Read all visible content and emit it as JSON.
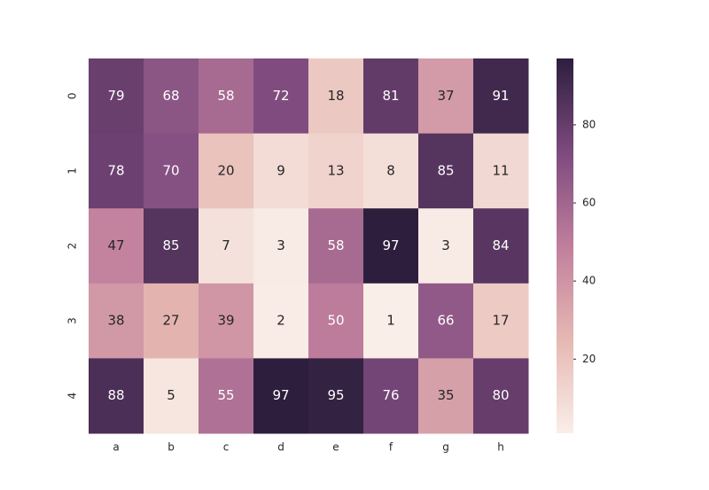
{
  "chart_data": {
    "type": "heatmap",
    "columns": [
      "a",
      "b",
      "c",
      "d",
      "e",
      "f",
      "g",
      "h"
    ],
    "rows": [
      "0",
      "1",
      "2",
      "3",
      "4"
    ],
    "values": [
      [
        79,
        68,
        58,
        72,
        18,
        81,
        37,
        91
      ],
      [
        78,
        70,
        20,
        9,
        13,
        8,
        85,
        11
      ],
      [
        47,
        85,
        7,
        3,
        58,
        97,
        3,
        84
      ],
      [
        38,
        27,
        39,
        2,
        50,
        1,
        66,
        17
      ],
      [
        88,
        5,
        55,
        97,
        95,
        76,
        35,
        80
      ]
    ],
    "clim": [
      1,
      97
    ],
    "cticks": [
      20,
      40,
      60,
      80
    ],
    "colors": [
      "#faeee8",
      "#e6b8b2",
      "#c07e9c",
      "#7d4a7e",
      "#2d1e3e"
    ]
  }
}
